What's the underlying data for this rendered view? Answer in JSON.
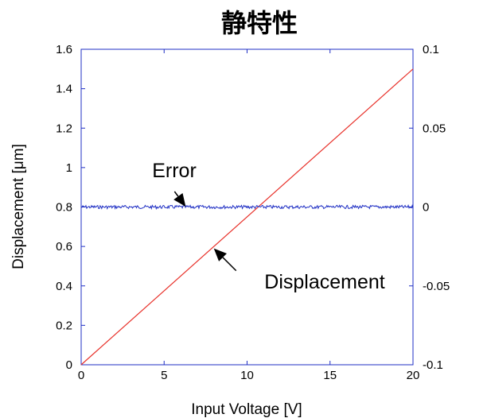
{
  "chart_data": {
    "type": "line",
    "title": "静特性",
    "xlabel": "Input Voltage [V]",
    "ylabel": "Displacement [μm]",
    "xlim": [
      0,
      20
    ],
    "ylim": [
      0,
      1.6
    ],
    "y2lim": [
      -0.1,
      0.1
    ],
    "xticks": [
      "0",
      "5",
      "10",
      "15",
      "20"
    ],
    "yticks": [
      "0",
      "0.2",
      "0.4",
      "0.6",
      "0.8",
      "1",
      "1.2",
      "1.4",
      "1.6"
    ],
    "y2ticks": [
      "-0.1",
      "-0.05",
      "0",
      "0.05",
      "0.1"
    ],
    "grid": false,
    "series": [
      {
        "name": "Displacement",
        "axis": "left",
        "color": "#e8312a",
        "x": [
          0,
          20
        ],
        "y": [
          0,
          1.5
        ]
      },
      {
        "name": "Error",
        "axis": "right",
        "color": "#1f2fc4",
        "x": [
          0,
          20
        ],
        "y": [
          0,
          0
        ]
      }
    ],
    "annotations": [
      {
        "text": "Error",
        "target_series": "Error",
        "x": 6.3,
        "y": 0.802
      },
      {
        "text": "Displacement",
        "target_series": "Displacement",
        "x": 7.9,
        "y": 0.59
      }
    ]
  }
}
